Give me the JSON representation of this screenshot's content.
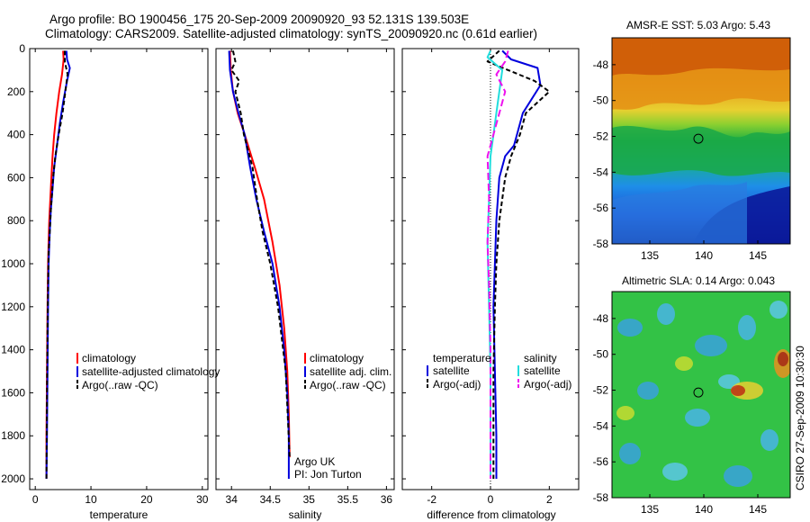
{
  "header": {
    "line1": "Argo profile: BO 1900456_175 20-Sep-2009 20090920_93 52.131S 139.503E",
    "line2": "Climatology: CARS2009. Satellite-adjusted climatology: synTS_20090920.nc (0.61d earlier)"
  },
  "colors": {
    "climatology": "#ff0000",
    "satellite": "#0000dd",
    "argo": "#000000",
    "cyan": "#22dddd",
    "magenta": "#ee11ee"
  },
  "chart_data": [
    {
      "type": "line",
      "name": "temperature",
      "xlabel": "temperature",
      "xlim": [
        -1,
        31
      ],
      "ylim": [
        0,
        2050
      ],
      "y_reversed": true,
      "xticks": [
        0,
        10,
        20,
        30
      ],
      "yticks": [
        0,
        200,
        400,
        600,
        800,
        1000,
        1200,
        1400,
        1600,
        1800,
        2000
      ],
      "series": [
        {
          "name": "climatology",
          "color": "#ff0000",
          "dash": "",
          "x": [
            5.0,
            5.1,
            4.8,
            4.3,
            3.8,
            3.4,
            3.1,
            2.9,
            2.7,
            2.5,
            2.4,
            2.3,
            2.2,
            2.1,
            2.0,
            2.0
          ],
          "y": [
            10,
            50,
            120,
            200,
            300,
            400,
            500,
            600,
            700,
            800,
            900,
            1000,
            1200,
            1500,
            1800,
            2000
          ]
        },
        {
          "name": "satellite-adjusted climatology",
          "color": "#0000dd",
          "dash": "",
          "x": [
            5.6,
            5.7,
            6.2,
            5.7,
            5.0,
            4.4,
            3.9,
            3.4,
            3.1,
            2.8,
            2.6,
            2.4,
            2.3,
            2.2,
            2.1,
            2.0
          ],
          "y": [
            10,
            50,
            90,
            150,
            250,
            350,
            450,
            550,
            650,
            750,
            850,
            1000,
            1200,
            1500,
            1800,
            2000
          ]
        },
        {
          "name": "Argo(..raw -QC)",
          "color": "#000000",
          "dash": "5,3",
          "x": [
            5.3,
            5.3,
            5.8,
            5.4,
            4.9,
            4.2,
            3.6,
            3.2,
            2.8,
            2.6,
            2.4,
            2.3,
            2.2,
            2.1,
            2.0
          ],
          "y": [
            10,
            60,
            120,
            200,
            300,
            400,
            500,
            600,
            750,
            850,
            950,
            1100,
            1300,
            1600,
            2000
          ]
        }
      ],
      "legend": [
        "climatology",
        "satellite-adjusted climatology",
        "Argo(..raw -QC)"
      ]
    },
    {
      "type": "line",
      "name": "salinity",
      "xlabel": "salinity",
      "xlim": [
        33.8,
        36.1
      ],
      "ylim": [
        0,
        2050
      ],
      "y_reversed": true,
      "xticks": [
        34,
        34.5,
        35,
        35.5,
        36
      ],
      "series": [
        {
          "name": "climatology",
          "color": "#ff0000",
          "dash": "",
          "x": [
            33.98,
            33.99,
            34.02,
            34.08,
            34.17,
            34.3,
            34.42,
            34.53,
            34.62,
            34.68,
            34.72,
            34.74,
            34.75
          ],
          "y": [
            10,
            100,
            200,
            300,
            400,
            550,
            700,
            900,
            1100,
            1300,
            1500,
            1700,
            1900
          ]
        },
        {
          "name": "satellite adj. clim.",
          "color": "#0000dd",
          "dash": "",
          "x": [
            33.97,
            33.98,
            34.02,
            34.09,
            34.17,
            34.24,
            34.32,
            34.42,
            34.53,
            34.62,
            34.68,
            34.72,
            34.74,
            34.74
          ],
          "y": [
            10,
            100,
            200,
            300,
            400,
            550,
            700,
            850,
            1000,
            1200,
            1400,
            1600,
            1800,
            2000
          ]
        },
        {
          "name": "Argo(..raw -QC)",
          "color": "#000000",
          "dash": "5,3",
          "x": [
            34.02,
            34.05,
            34.0,
            34.1,
            34.05,
            34.12,
            34.16,
            34.27,
            34.33,
            34.4,
            34.5,
            34.6,
            34.7,
            34.75
          ],
          "y": [
            10,
            60,
            100,
            150,
            200,
            300,
            400,
            550,
            700,
            850,
            1000,
            1200,
            1500,
            1900
          ]
        }
      ],
      "legend": [
        "climatology",
        "satellite adj. clim.",
        "Argo(..raw -QC)"
      ],
      "annotation": [
        "Argo UK",
        "PI: Jon Turton"
      ]
    },
    {
      "type": "line",
      "name": "difference",
      "xlabel": "difference from climatology",
      "xlim": [
        -3,
        3
      ],
      "ylim": [
        0,
        2050
      ],
      "y_reversed": true,
      "xticks": [
        -2,
        0,
        2
      ],
      "series": [
        {
          "name": "temperature satellite",
          "color": "#0000dd",
          "dash": "",
          "x": [
            0.4,
            0.7,
            1.6,
            1.7,
            1.1,
            0.9,
            0.8,
            0.5,
            0.3,
            0.2,
            0.15,
            0.1,
            0.15,
            0.2,
            0.2
          ],
          "y": [
            10,
            50,
            90,
            170,
            300,
            400,
            450,
            500,
            600,
            800,
            1000,
            1200,
            1500,
            1800,
            2000
          ]
        },
        {
          "name": "temperature Argo(-adj)",
          "color": "#000000",
          "dash": "5,3",
          "x": [
            0.3,
            -0.1,
            0.6,
            1.5,
            2.0,
            1.2,
            1.0,
            0.7,
            0.5,
            0.3,
            0.2,
            0.15,
            0.1,
            0.1
          ],
          "y": [
            10,
            60,
            100,
            150,
            200,
            300,
            400,
            500,
            600,
            800,
            1000,
            1200,
            1500,
            2000
          ]
        },
        {
          "name": "salinity satellite",
          "color": "#22dddd",
          "dash": "",
          "x": [
            0.0,
            -0.1,
            0.4,
            0.3,
            0.2,
            0.1,
            0.0,
            -0.05,
            -0.1,
            -0.05,
            0.0,
            0.0,
            0.0
          ],
          "y": [
            10,
            40,
            100,
            200,
            300,
            400,
            500,
            700,
            900,
            1200,
            1500,
            1800,
            2000
          ]
        },
        {
          "name": "salinity Argo(-adj)",
          "color": "#ee11ee",
          "dash": "8,4",
          "x": [
            0.6,
            0.5,
            0.2,
            0.5,
            0.3,
            -0.1,
            -0.05,
            -0.1,
            -0.05,
            0.0,
            0.0,
            0.0
          ],
          "y": [
            10,
            60,
            120,
            200,
            300,
            500,
            700,
            900,
            1100,
            1400,
            1700,
            2000
          ]
        }
      ],
      "legend_titles": [
        "temperature",
        "salinity"
      ],
      "legend": [
        "satellite",
        "Argo(-adj)",
        "satellite",
        "Argo(-adj)"
      ]
    },
    {
      "type": "heatmap",
      "name": "sst_map",
      "title": "AMSR-E SST: 5.03 Argo: 5.43",
      "xlim": [
        131.5,
        148
      ],
      "ylim": [
        -58,
        -46.5
      ],
      "xticks": [
        135,
        140,
        145
      ],
      "yticks": [
        -48,
        -50,
        -52,
        -54,
        -56,
        -58
      ],
      "marker": {
        "lon": 139.5,
        "lat": -52.13
      }
    },
    {
      "type": "heatmap",
      "name": "sla_map",
      "title": "Altimetric SLA: 0.14 Argo: 0.043",
      "xlim": [
        131.5,
        148
      ],
      "ylim": [
        -58,
        -46.5
      ],
      "xticks": [
        135,
        140,
        145
      ],
      "yticks": [
        -48,
        -50,
        -52,
        -54,
        -56,
        -58
      ],
      "marker": {
        "lon": 139.5,
        "lat": -52.13
      }
    }
  ],
  "footer": {
    "stamp": "CSIRO 27-Sep-2009 10:30:30"
  }
}
